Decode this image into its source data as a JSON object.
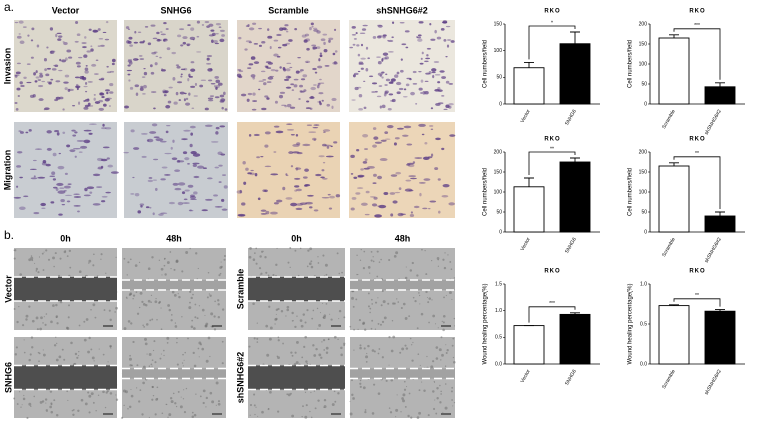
{
  "panels": {
    "a": {
      "label": "a.",
      "columns": [
        "Vector",
        "SNHG6",
        "Scramble",
        "shSNHG6#2"
      ],
      "rows": [
        "Invasion",
        "Migration"
      ]
    },
    "b": {
      "label": "b.",
      "columns": [
        "0h",
        "48h",
        "0h",
        "48h"
      ],
      "rows": [
        "Vector",
        "SNHG6",
        "Scramble",
        "shSNHG6#2"
      ]
    }
  },
  "chart_data": [
    {
      "type": "bar",
      "title": "RKO",
      "ylabel": "Cell numbers/field",
      "categories": [
        "Vector",
        "SNHG6"
      ],
      "values": [
        68,
        113
      ],
      "errors": [
        10,
        22
      ],
      "colors": [
        "#ffffff",
        "#000000"
      ],
      "significance": "*",
      "ylim": [
        0,
        150
      ],
      "yticks": [
        0,
        50,
        100,
        150
      ]
    },
    {
      "type": "bar",
      "title": "RKO",
      "ylabel": "Cell numbers/field",
      "categories": [
        "Scramble",
        "shSNHG6#2"
      ],
      "values": [
        165,
        43
      ],
      "errors": [
        8,
        10
      ],
      "colors": [
        "#ffffff",
        "#000000"
      ],
      "significance": "***",
      "ylim": [
        0,
        200
      ],
      "yticks": [
        0,
        50,
        100,
        150,
        200
      ]
    },
    {
      "type": "bar",
      "title": "RKO",
      "ylabel": "Cell numbers/field",
      "categories": [
        "Vector",
        "SNHG6"
      ],
      "values": [
        113,
        175
      ],
      "errors": [
        22,
        10
      ],
      "colors": [
        "#ffffff",
        "#000000"
      ],
      "significance": "**",
      "ylim": [
        0,
        200
      ],
      "yticks": [
        0,
        50,
        100,
        150,
        200
      ]
    },
    {
      "type": "bar",
      "title": "RKO",
      "ylabel": "Cell numbers/field",
      "categories": [
        "Scramble",
        "shSNHG6#2"
      ],
      "values": [
        165,
        40
      ],
      "errors": [
        8,
        10
      ],
      "colors": [
        "#ffffff",
        "#000000"
      ],
      "significance": "**",
      "ylim": [
        0,
        200
      ],
      "yticks": [
        0,
        50,
        100,
        150,
        200
      ]
    },
    {
      "type": "bar",
      "title": "RKO",
      "ylabel": "Wound healing percentage(%)",
      "categories": [
        "Vector",
        "SNHG6"
      ],
      "values": [
        0.72,
        0.93
      ],
      "errors": [
        0,
        0.03
      ],
      "colors": [
        "#ffffff",
        "#000000"
      ],
      "significance": "***",
      "ylim": [
        0,
        1.5
      ],
      "yticks": [
        {
          "value": 0,
          "label": "0.0"
        },
        0.5,
        {
          "value": 1,
          "label": "1.0"
        },
        1.5
      ]
    },
    {
      "type": "bar",
      "title": "RKO",
      "ylabel": "Wound healing percentage(%)",
      "categories": [
        "Scramble",
        "shSNHG6#2"
      ],
      "values": [
        0.73,
        0.66
      ],
      "errors": [
        0.01,
        0.02
      ],
      "colors": [
        "#ffffff",
        "#000000"
      ],
      "significance": "**",
      "ylim": [
        0,
        1
      ],
      "yticks": [
        {
          "value": 0,
          "label": "0.0"
        },
        0.5,
        {
          "value": 1,
          "label": "1.0"
        }
      ]
    }
  ]
}
